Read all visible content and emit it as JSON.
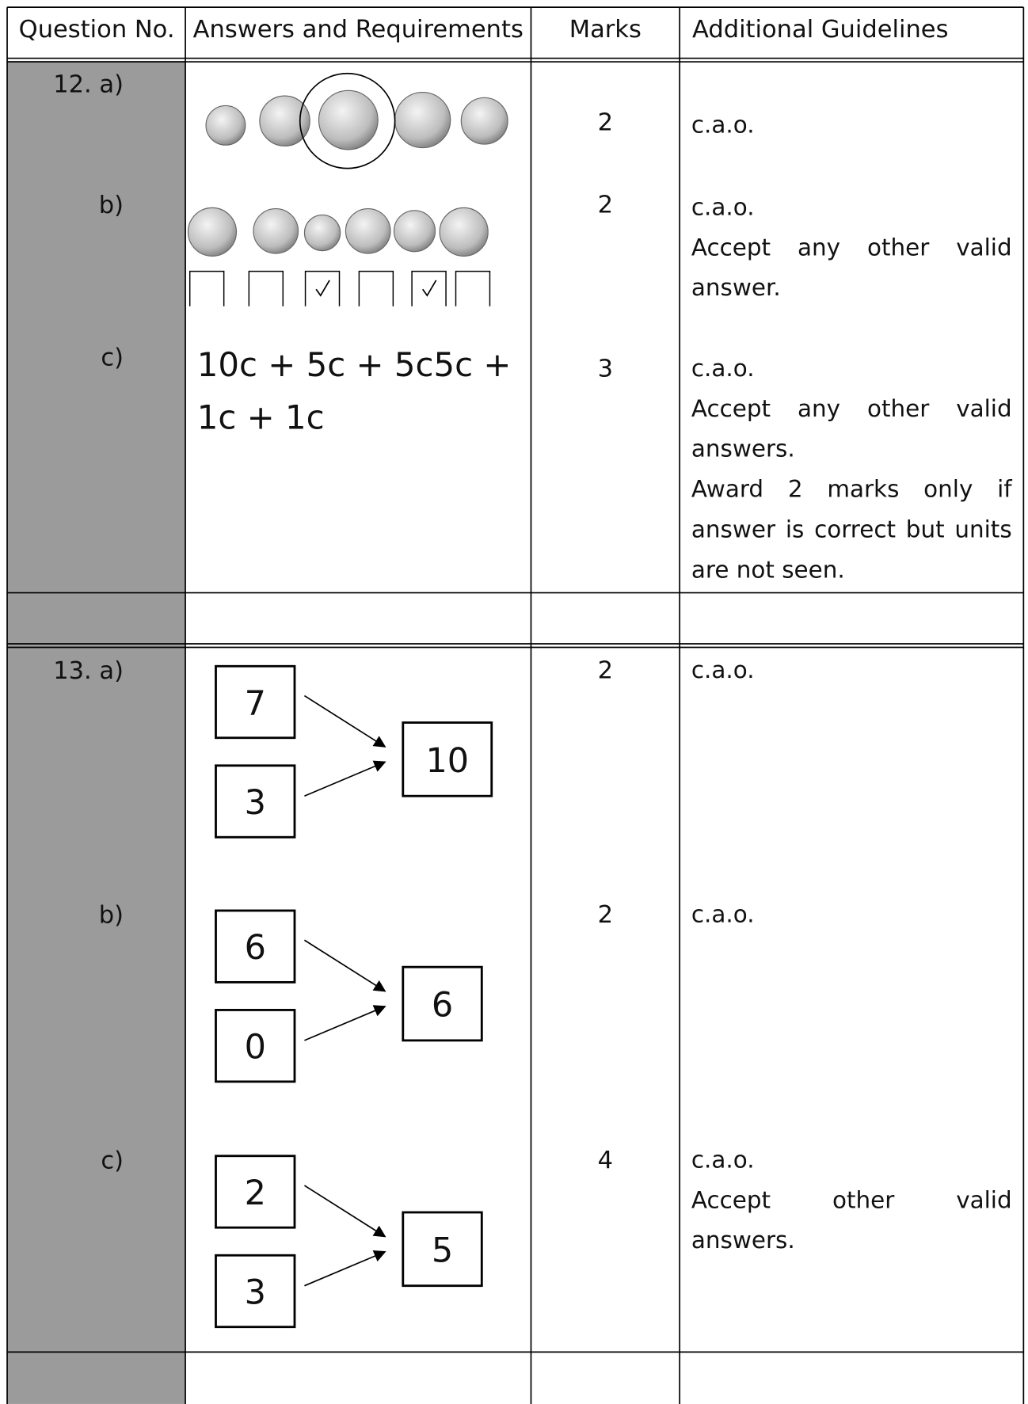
{
  "header": [
    "Question No.",
    "Answers and Requirements",
    "Marks",
    "Additional Guidelines"
  ],
  "questions": [
    {
      "number": "12.",
      "parts": [
        {
          "label": "a)",
          "marks": 2,
          "guidelines": [
            "c.a.o."
          ]
        },
        {
          "label": "b)",
          "marks": 2,
          "guidelines": [
            "c.a.o.",
            "Accept any other valid answer."
          ]
        },
        {
          "label": "c)",
          "answer": "10c + 5c + 5c5c + 1c + 1c",
          "marks": 3,
          "guidelines": [
            "c.a.o.",
            "Accept any other valid answers.",
            "Award 2 marks only if answer is correct but units are not seen."
          ]
        }
      ]
    },
    {
      "number": "13.",
      "parts": [
        {
          "label": "a)",
          "inputs": [
            7,
            3
          ],
          "output": 10,
          "marks": 2,
          "guidelines": [
            "c.a.o."
          ]
        },
        {
          "label": "b)",
          "inputs": [
            6,
            0
          ],
          "output": 6,
          "marks": 2,
          "guidelines": [
            "c.a.o."
          ]
        },
        {
          "label": "c)",
          "inputs": [
            2,
            3
          ],
          "output": 5,
          "marks": 4,
          "guidelines": [
            "c.a.o.",
            "Accept other valid answers."
          ]
        }
      ]
    }
  ]
}
